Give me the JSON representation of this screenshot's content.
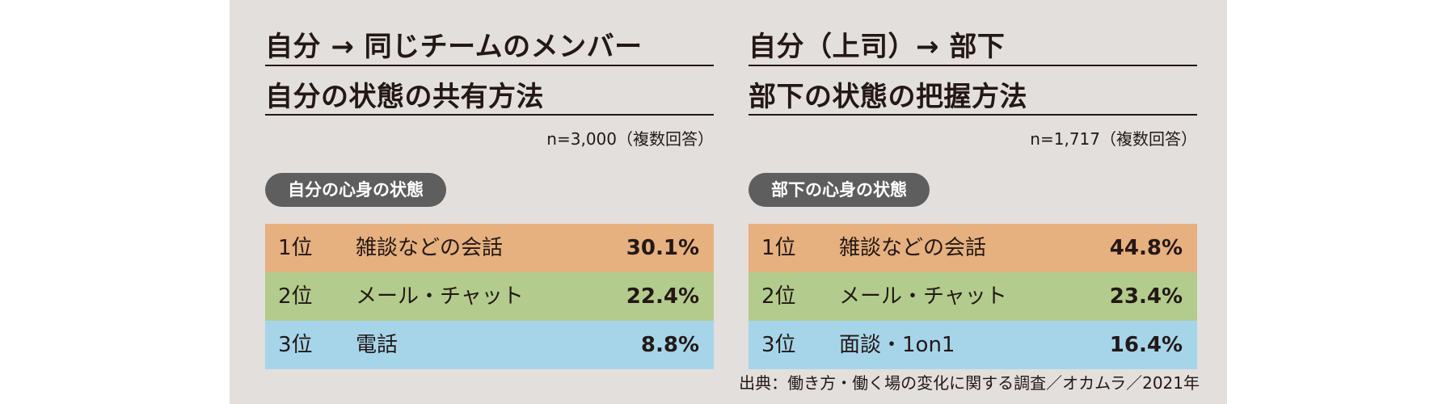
{
  "left": {
    "title_line1": "自分 → 同じチームのメンバー",
    "title_line2": "自分の状態の共有方法",
    "note": "n=3,000（複数回答）",
    "category": "自分の心身の状態",
    "rows": [
      {
        "rank": "1位",
        "label": "雑談などの会話",
        "value": "30.1%"
      },
      {
        "rank": "2位",
        "label": "メール・チャット",
        "value": "22.4%"
      },
      {
        "rank": "3位",
        "label": "電話",
        "value": "8.8%"
      }
    ]
  },
  "right": {
    "title_line1": "自分（上司）→ 部下",
    "title_line2": "部下の状態の把握方法",
    "note": "n=1,717（複数回答）",
    "category": "部下の心身の状態",
    "rows": [
      {
        "rank": "1位",
        "label": "雑談などの会話",
        "value": "44.8%"
      },
      {
        "rank": "2位",
        "label": "メール・チャット",
        "value": "23.4%"
      },
      {
        "rank": "3位",
        "label": "面談・1on1",
        "value": "16.4%"
      }
    ]
  },
  "source": "出典：働き方・働く場の変化に関する調査／オカムラ／2021年",
  "colors": {
    "rank1": "#e6b07f",
    "rank2": "#b3cc8d",
    "rank3": "#a6d5ea",
    "panel": "#e2dfdc",
    "pill": "#5e5e5e"
  }
}
